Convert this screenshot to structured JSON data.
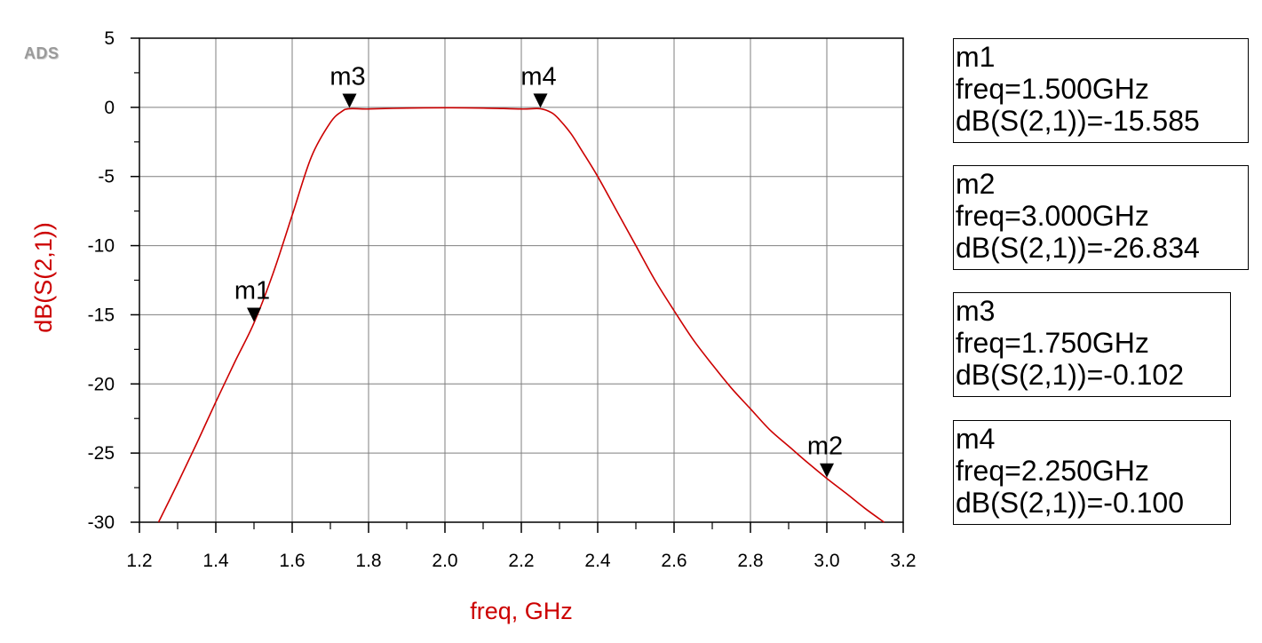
{
  "app_logo": "ADS",
  "chart_data": {
    "type": "line",
    "xlabel": "freq, GHz",
    "ylabel": "dB(S(2,1))",
    "xlim": [
      1.2,
      3.2
    ],
    "ylim": [
      -30,
      5
    ],
    "xticks": [
      "1.2",
      "1.4",
      "1.6",
      "1.8",
      "2.0",
      "2.2",
      "2.4",
      "2.6",
      "2.8",
      "3.0",
      "3.2"
    ],
    "yticks": [
      "5",
      "0",
      "-5",
      "-10",
      "-15",
      "-20",
      "-25",
      "-30"
    ],
    "grid": true,
    "line_color": "#cc0000",
    "series": [
      {
        "x": [
          1.25,
          1.3,
          1.35,
          1.4,
          1.45,
          1.5,
          1.55,
          1.6,
          1.65,
          1.7,
          1.73,
          1.75,
          1.8,
          1.9,
          2.0,
          2.1,
          2.2,
          2.25,
          2.28,
          2.3,
          2.33,
          2.36,
          2.4,
          2.45,
          2.5,
          2.55,
          2.6,
          2.65,
          2.7,
          2.75,
          2.8,
          2.85,
          2.9,
          2.95,
          3.0,
          3.05,
          3.1,
          3.15
        ],
        "y": [
          -30.0,
          -27.2,
          -24.3,
          -21.3,
          -18.4,
          -15.585,
          -12.0,
          -7.8,
          -3.6,
          -1.1,
          -0.3,
          -0.102,
          -0.12,
          -0.05,
          -0.03,
          -0.05,
          -0.12,
          -0.1,
          -0.4,
          -0.9,
          -1.9,
          -3.2,
          -5.0,
          -7.5,
          -10.0,
          -12.5,
          -14.7,
          -16.8,
          -18.6,
          -20.3,
          -21.8,
          -23.3,
          -24.5,
          -25.7,
          -26.834,
          -27.9,
          -29.0,
          -30.0
        ]
      }
    ],
    "markers": [
      {
        "name": "m1",
        "x": 1.5,
        "y": -15.585
      },
      {
        "name": "m2",
        "x": 3.0,
        "y": -26.834
      },
      {
        "name": "m3",
        "x": 1.75,
        "y": -0.102
      },
      {
        "name": "m4",
        "x": 2.25,
        "y": -0.1
      }
    ]
  },
  "readouts": [
    {
      "name": "m1",
      "freq": "freq=1.500GHz",
      "value": "dB(S(2,1))=-15.585"
    },
    {
      "name": "m2",
      "freq": "freq=3.000GHz",
      "value": "dB(S(2,1))=-26.834"
    },
    {
      "name": "m3",
      "freq": "freq=1.750GHz",
      "value": "dB(S(2,1))=-0.102"
    },
    {
      "name": "m4",
      "freq": "freq=2.250GHz",
      "value": "dB(S(2,1))=-0.100"
    }
  ]
}
